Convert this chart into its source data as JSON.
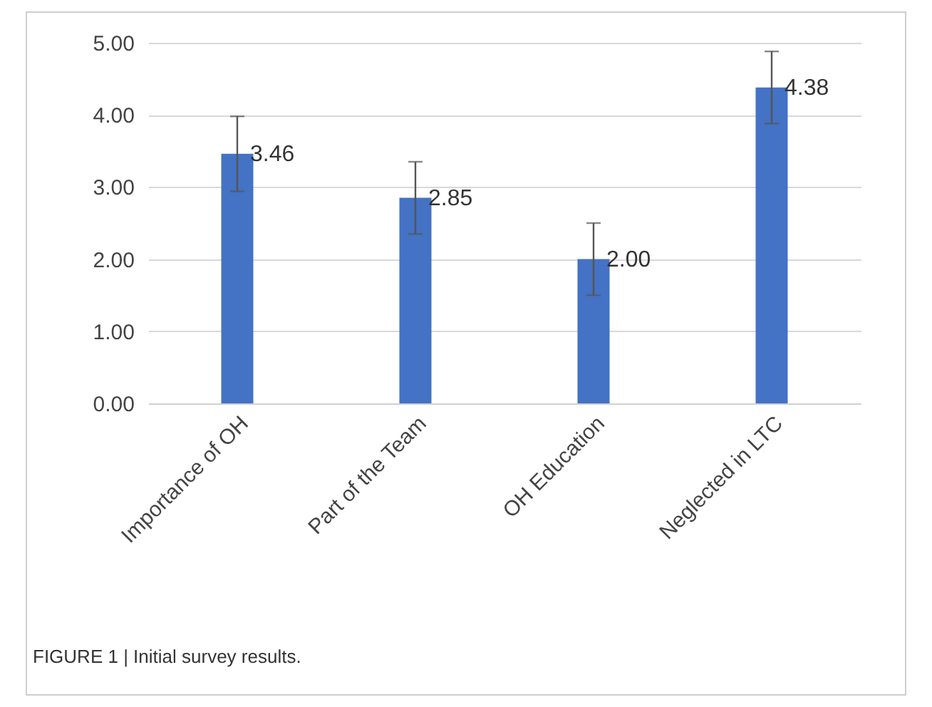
{
  "chart_data": {
    "type": "bar",
    "categories": [
      "Importance of OH",
      "Part of the Team",
      "OH Education",
      "Neglected in LTC"
    ],
    "values": [
      3.46,
      2.85,
      2.0,
      4.38
    ],
    "errors": [
      0.52,
      0.5,
      0.5,
      0.5
    ],
    "color": "#4472c4",
    "value_labels": [
      "3.46",
      "2.85",
      "2.00",
      "4.38"
    ],
    "ylim": [
      0,
      5
    ],
    "yticks": [
      {
        "value": 0,
        "label": "0.00"
      },
      {
        "value": 1,
        "label": "1.00"
      },
      {
        "value": 2,
        "label": "2.00"
      },
      {
        "value": 3,
        "label": "3.00"
      },
      {
        "value": 4,
        "label": "4.00"
      },
      {
        "value": 5,
        "label": "5.00"
      }
    ],
    "grid": "y",
    "annotations": [
      "FIGURE 1 | Initial survey results."
    ]
  }
}
